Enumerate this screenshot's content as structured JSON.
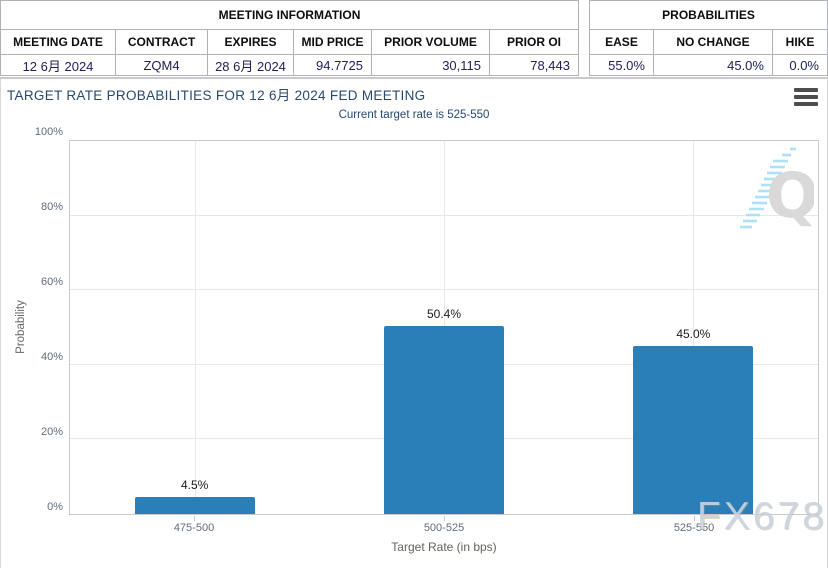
{
  "meeting_info": {
    "title": "MEETING INFORMATION",
    "columns": [
      "MEETING DATE",
      "CONTRACT",
      "EXPIRES",
      "MID PRICE",
      "PRIOR VOLUME",
      "PRIOR OI"
    ],
    "values": [
      "12 6月 2024",
      "ZQM4",
      "28 6月 2024",
      "94.7725",
      "30,115",
      "78,443"
    ]
  },
  "probabilities": {
    "title": "PROBABILITIES",
    "columns": [
      "EASE",
      "NO CHANGE",
      "HIKE"
    ],
    "values": [
      "55.0%",
      "45.0%",
      "0.0%"
    ]
  },
  "chart_data": {
    "type": "bar",
    "title": "TARGET RATE PROBABILITIES FOR 12 6月 2024 FED MEETING",
    "subtitle": "Current target rate is 525-550",
    "categories": [
      "475-500",
      "500-525",
      "525-550"
    ],
    "values": [
      4.5,
      50.4,
      45.0
    ],
    "value_labels": [
      "4.5%",
      "50.4%",
      "45.0%"
    ],
    "xlabel": "Target Rate (in bps)",
    "ylabel": "Probability",
    "ylim": [
      0,
      100
    ],
    "yticks": [
      "0%",
      "20%",
      "40%",
      "60%",
      "80%",
      "100%"
    ],
    "grid": true,
    "legend": "none",
    "bar_color": "#2b7fb8"
  },
  "watermarks": {
    "logo_letter": "Q",
    "site": "FX678"
  },
  "colors": {
    "bar": "#2b7fb8",
    "title_text": "#27496e",
    "table_value_text": "#20205a",
    "grid": "#e7e7e7"
  }
}
